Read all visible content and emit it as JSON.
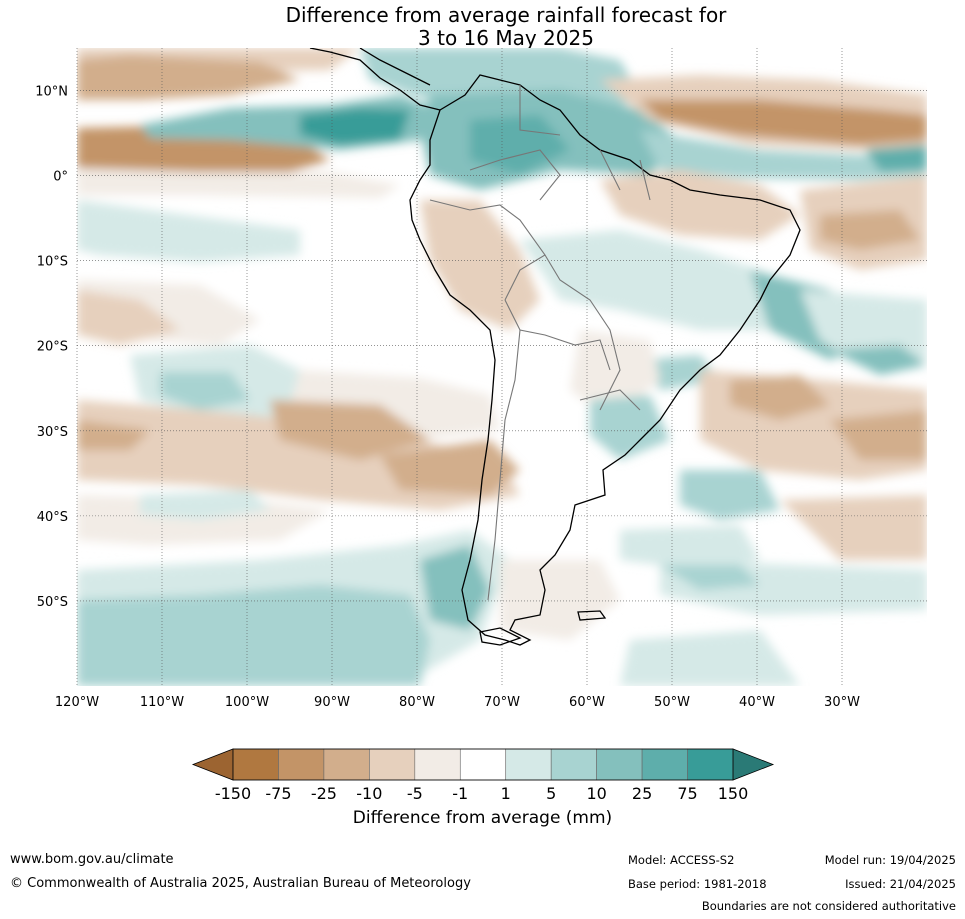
{
  "title": {
    "line1": "Difference from average rainfall forecast for",
    "line2": "3 to 16 May 2025"
  },
  "axes": {
    "lon_range": [
      -120,
      -20
    ],
    "lat_range": [
      -60,
      15
    ],
    "lon_ticks": [
      {
        "value": -120,
        "label": "120°W"
      },
      {
        "value": -110,
        "label": "110°W"
      },
      {
        "value": -100,
        "label": "100°W"
      },
      {
        "value": -90,
        "label": "90°W"
      },
      {
        "value": -80,
        "label": "80°W"
      },
      {
        "value": -70,
        "label": "70°W"
      },
      {
        "value": -60,
        "label": "60°W"
      },
      {
        "value": -50,
        "label": "50°W"
      },
      {
        "value": -40,
        "label": "40°W"
      },
      {
        "value": -30,
        "label": "30°W"
      }
    ],
    "lat_ticks": [
      {
        "value": 10,
        "label": "10°N"
      },
      {
        "value": 0,
        "label": "0°"
      },
      {
        "value": -10,
        "label": "10°S"
      },
      {
        "value": -20,
        "label": "20°S"
      },
      {
        "value": -30,
        "label": "30°S"
      },
      {
        "value": -40,
        "label": "40°S"
      },
      {
        "value": -50,
        "label": "50°S"
      }
    ],
    "grid": "dotted"
  },
  "colorbar": {
    "label": "Difference from average (mm)",
    "ticks": [
      "-150",
      "-75",
      "-25",
      "-10",
      "-5",
      "-1",
      "1",
      "5",
      "10",
      "25",
      "75",
      "150"
    ],
    "low_extend_color": "#9c6431",
    "high_extend_color": "#2a7a76",
    "colors": [
      "#b07840",
      "#c39467",
      "#d2ae8c",
      "#e6d0bd",
      "#f2ece6",
      "#ffffff",
      "#d5e9e7",
      "#a8d3d1",
      "#84c0bd",
      "#5eaeab",
      "#389c98"
    ]
  },
  "footer": {
    "website": "www.bom.gov.au/climate",
    "copyright": "© Commonwealth of Australia 2025, Australian Bureau of Meteorology",
    "model": "Model: ACCESS-S2",
    "base_period": "Base period: 1981-2018",
    "model_run": "Model run: 19/04/2025",
    "issued": "Issued: 21/04/2025",
    "disclaimer": "Boundaries are not considered authoritative"
  }
}
